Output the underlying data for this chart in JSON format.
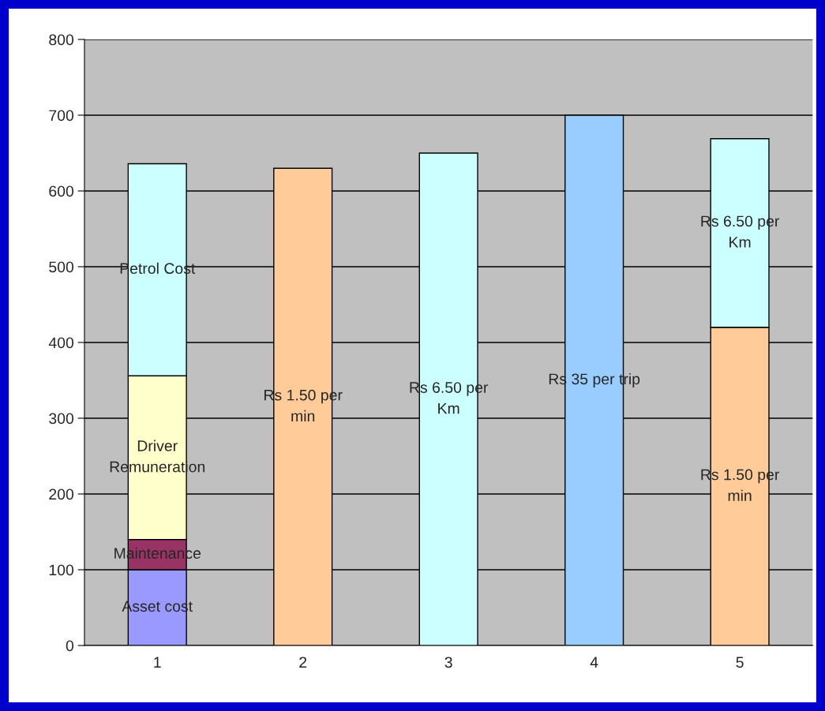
{
  "chart_data": {
    "type": "bar",
    "stacked": true,
    "categories": [
      "1",
      "2",
      "3",
      "4",
      "5"
    ],
    "series": [
      {
        "values": [
          100,
          630,
          650,
          700,
          420
        ],
        "colors": [
          "#9999ff",
          "#ffcc99",
          "#ccffff",
          "#99ccff",
          "#ffcc99"
        ],
        "value_labels": [
          "Asset cost",
          "Rs 1.50 per\nmin",
          "Rs 6.50 per\nKm",
          "Rs 35 per trip",
          "Rs 1.50 per\nmin"
        ]
      },
      {
        "values": [
          40,
          null,
          null,
          null,
          249
        ],
        "colors": [
          "#993366",
          null,
          null,
          null,
          "#ccffff"
        ],
        "value_labels": [
          "Maintenance",
          null,
          null,
          null,
          "Rs 6.50 per\nKm"
        ]
      },
      {
        "values": [
          216,
          null,
          null,
          null,
          null
        ],
        "color": "#ffffcc",
        "value_labels": [
          "Driver\nRemuneration",
          null,
          null,
          null,
          null
        ]
      },
      {
        "values": [
          280,
          null,
          null,
          null,
          null
        ],
        "color": "#ccffff",
        "value_labels": [
          "Petrol Cost",
          null,
          null,
          null,
          null
        ]
      }
    ],
    "ylim": [
      0,
      800
    ],
    "yticks": [
      0,
      100,
      200,
      300,
      400,
      500,
      600,
      700,
      800
    ],
    "grid": "y"
  }
}
